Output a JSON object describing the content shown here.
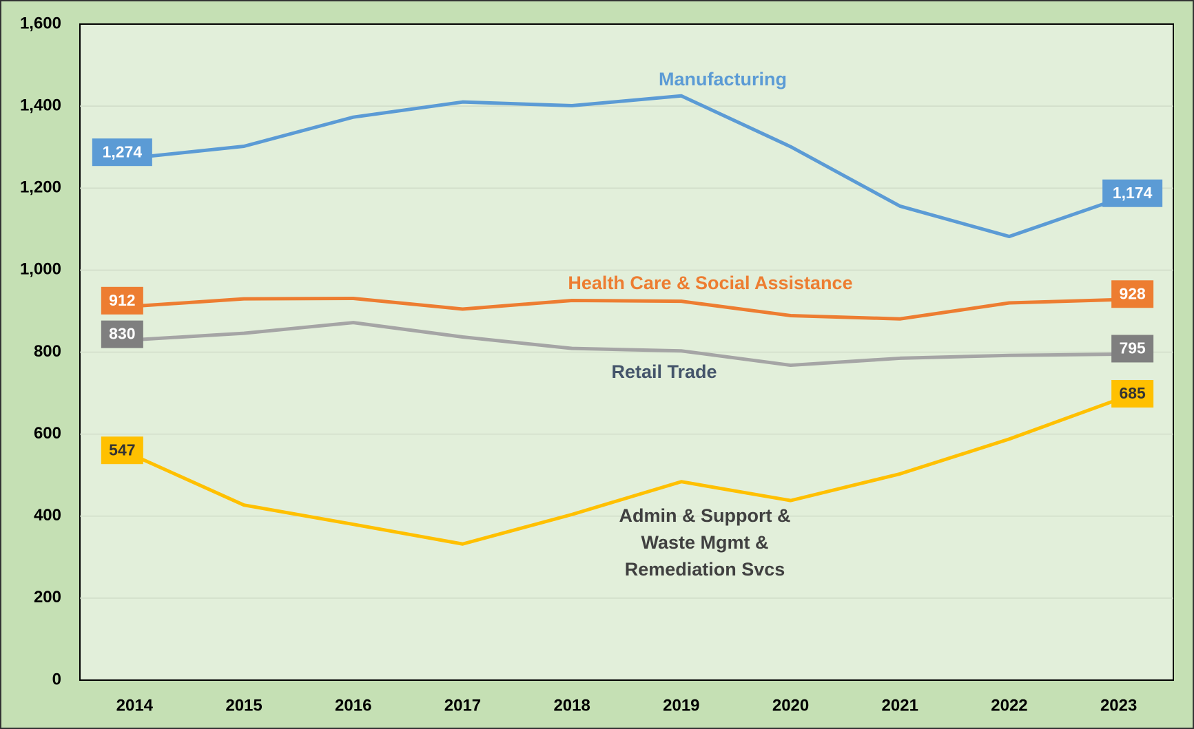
{
  "chart_data": {
    "type": "line",
    "categories": [
      "2014",
      "2015",
      "2016",
      "2017",
      "2018",
      "2019",
      "2020",
      "2021",
      "2022",
      "2023"
    ],
    "ylim": [
      0,
      1600
    ],
    "yticks": [
      0,
      200,
      400,
      600,
      800,
      {
        "value": 1000,
        "label": "1,000"
      },
      {
        "value": 1200,
        "label": "1,200"
      },
      {
        "value": 1400,
        "label": "1,400"
      },
      {
        "value": 1600,
        "label": "1,600"
      }
    ],
    "grid": true,
    "series": [
      {
        "name": "Manufacturing",
        "color": "#5b9bd5",
        "name_color": "#5b9bd5",
        "label_color": "#5b9bd5",
        "label_text_color": "#ffffff",
        "values": [
          1274,
          1302,
          1373,
          1410,
          1401,
          1425,
          1301,
          1156,
          1082,
          1174
        ],
        "value_labels": [
          "1,274",
          null,
          null,
          null,
          null,
          null,
          null,
          null,
          null,
          "1,174"
        ]
      },
      {
        "name": "Health Care & Social Assistance",
        "color": "#ed7d31",
        "name_color": "#ed7d31",
        "label_color": "#ed7d31",
        "label_text_color": "#ffffff",
        "values": [
          912,
          930,
          931,
          905,
          926,
          924,
          889,
          881,
          920,
          928
        ],
        "value_labels": [
          "912",
          null,
          null,
          null,
          null,
          null,
          null,
          null,
          null,
          "928"
        ]
      },
      {
        "name": "Retail Trade",
        "color": "#a5a5a5",
        "name_color": "#44546a",
        "label_color": "#7f7f7f",
        "label_text_color": "#ffffff",
        "values": [
          830,
          846,
          872,
          837,
          809,
          803,
          768,
          785,
          792,
          795
        ],
        "value_labels": [
          "830",
          null,
          null,
          null,
          null,
          null,
          null,
          null,
          null,
          "795"
        ]
      },
      {
        "name": "Admin & Support & Waste Mgmt & Remediation Svcs",
        "color": "#ffc000",
        "name_color": "#404040",
        "label_color": "#ffc000",
        "label_text_color": "#333333",
        "values": [
          547,
          427,
          380,
          332,
          404,
          484,
          438,
          503,
          588,
          685
        ],
        "value_labels": [
          "547",
          null,
          null,
          null,
          null,
          null,
          null,
          null,
          null,
          "685"
        ]
      }
    ]
  }
}
